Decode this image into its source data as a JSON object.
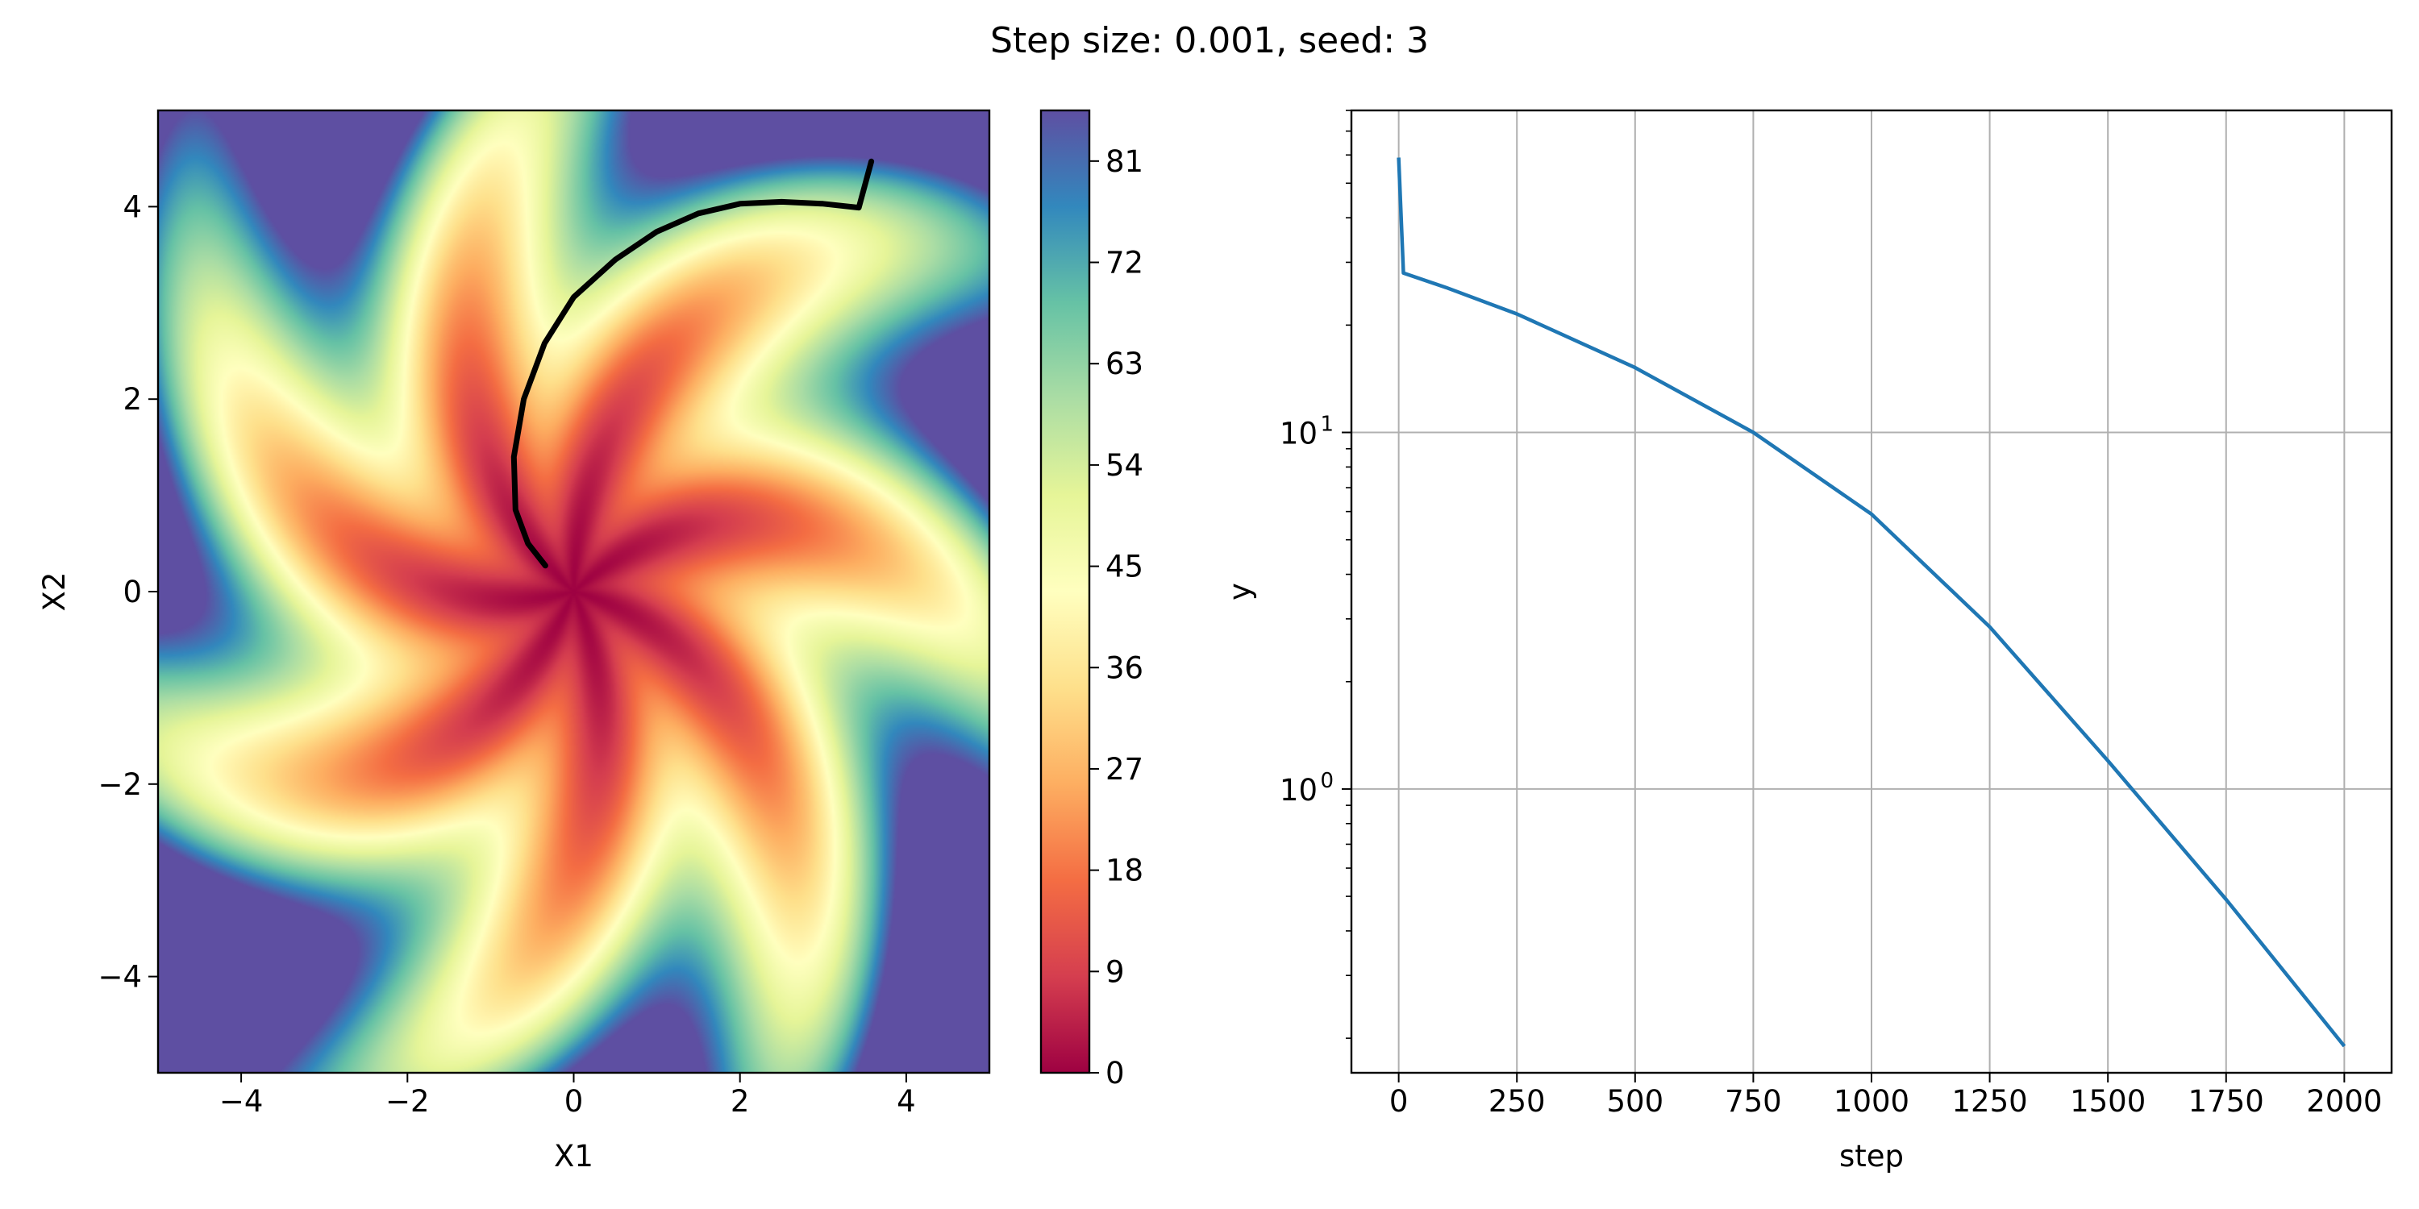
{
  "figure": {
    "title": "Step size: 0.001, seed: 3"
  },
  "chart_data": [
    {
      "type": "heatmap",
      "xlabel": "X1",
      "ylabel": "X2",
      "xlim": [
        -5,
        5
      ],
      "ylim": [
        -5,
        5
      ],
      "xticks": [
        -4,
        -2,
        0,
        2,
        4
      ],
      "yticks": [
        -4,
        -2,
        0,
        2,
        4
      ],
      "xticklabels": [
        "−4",
        "−2",
        "0",
        "2",
        "4"
      ],
      "yticklabels": [
        "−4",
        "−2",
        "0",
        "2",
        "4"
      ],
      "colormap": "Spectral",
      "colorbar": {
        "range": [
          0,
          85.5
        ],
        "ticks": [
          0,
          9,
          18,
          27,
          36,
          45,
          54,
          63,
          72,
          81
        ],
        "ticklabels": [
          "0",
          "9",
          "18",
          "27",
          "36",
          "45",
          "54",
          "63",
          "72",
          "81"
        ]
      },
      "trajectory": {
        "color": "#000000",
        "points": [
          [
            3.58,
            4.47
          ],
          [
            3.43,
            3.99
          ],
          [
            3.0,
            4.03
          ],
          [
            2.5,
            4.05
          ],
          [
            2.0,
            4.03
          ],
          [
            1.5,
            3.93
          ],
          [
            1.0,
            3.74
          ],
          [
            0.5,
            3.45
          ],
          [
            0.0,
            3.06
          ],
          [
            -0.35,
            2.58
          ],
          [
            -0.6,
            2.0
          ],
          [
            -0.72,
            1.4
          ],
          [
            -0.7,
            0.85
          ],
          [
            -0.55,
            0.5
          ],
          [
            -0.34,
            0.27
          ]
        ]
      }
    },
    {
      "type": "line",
      "xlabel": "step",
      "ylabel": "y",
      "yscale": "log",
      "grid": true,
      "xlim": [
        -100,
        2100
      ],
      "ylim": [
        0.16,
        80
      ],
      "xticks": [
        0,
        250,
        500,
        750,
        1000,
        1250,
        1500,
        1750,
        2000
      ],
      "xticklabels": [
        "0",
        "250",
        "500",
        "750",
        "1000",
        "1250",
        "1500",
        "1750",
        "2000"
      ],
      "yticks": [
        1,
        10
      ],
      "yticklabels": [
        [
          "10",
          "0"
        ],
        [
          "10",
          "1"
        ]
      ],
      "series": [
        {
          "color": "#1f77b4",
          "x": [
            0,
            10,
            100,
            250,
            500,
            750,
            1000,
            1250,
            1500,
            1750,
            2000
          ],
          "y": [
            59,
            28,
            25.5,
            21.5,
            15.2,
            10,
            5.9,
            2.85,
            1.2,
            0.49,
            0.19
          ]
        }
      ]
    }
  ]
}
